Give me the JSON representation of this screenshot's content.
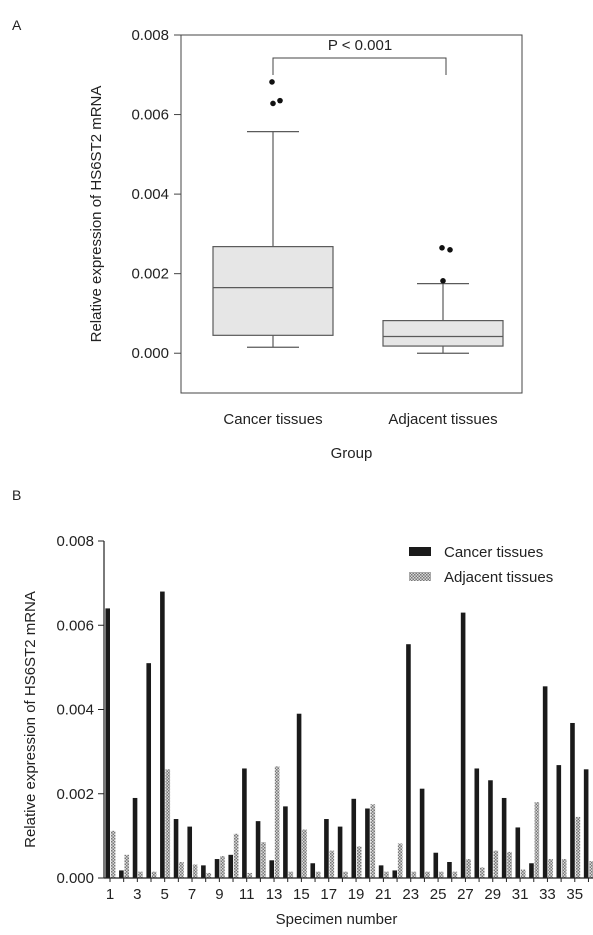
{
  "chart_data": [
    {
      "type": "box",
      "panel_label": "A",
      "title": "",
      "xlabel": "Group",
      "ylabel": "Relative expression of HS6ST2 mRNA",
      "ylim": [
        -0.001,
        0.008
      ],
      "yticks": [
        "0.000",
        "0.002",
        "0.004",
        "0.006",
        "0.008"
      ],
      "ytick_values": [
        0,
        0.002,
        0.004,
        0.006,
        0.008
      ],
      "categories": [
        "Cancer tissues",
        "Adjacent tissues"
      ],
      "boxes": [
        {
          "name": "Cancer tissues",
          "whisker_low": 0.00015,
          "q1": 0.00045,
          "median": 0.00165,
          "q3": 0.00268,
          "whisker_high": 0.00557,
          "outliers": [
            0.00628,
            0.00635,
            0.00682
          ]
        },
        {
          "name": "Adjacent tissues",
          "whisker_low": 0.0,
          "q1": 0.00018,
          "median": 0.00042,
          "q3": 0.00082,
          "whisker_high": 0.00175,
          "outliers": [
            0.00182,
            0.0026,
            0.00265
          ]
        }
      ],
      "annotation": "P < 0.001",
      "grid": false,
      "box_fill": "#e6e6e6",
      "box_stroke": "#5a5a5a"
    },
    {
      "type": "bar",
      "panel_label": "B",
      "title": "",
      "xlabel": "Specimen number",
      "ylabel": "Relative expression of HS6ST2 mRNA",
      "ylim": [
        0,
        0.008
      ],
      "yticks": [
        "0.000",
        "0.002",
        "0.004",
        "0.006",
        "0.008"
      ],
      "ytick_values": [
        0,
        0.002,
        0.004,
        0.006,
        0.008
      ],
      "x": [
        1,
        2,
        3,
        4,
        5,
        6,
        7,
        8,
        9,
        10,
        11,
        12,
        13,
        14,
        15,
        16,
        17,
        18,
        19,
        20,
        21,
        22,
        23,
        24,
        25,
        26,
        27,
        28,
        29,
        30,
        31,
        32,
        33,
        34,
        35,
        36
      ],
      "xtick_labels": [
        "1",
        "3",
        "5",
        "7",
        "9",
        "11",
        "13",
        "15",
        "17",
        "19",
        "21",
        "23",
        "25",
        "27",
        "29",
        "31",
        "33",
        "35"
      ],
      "xtick_values": [
        1,
        3,
        5,
        7,
        9,
        11,
        13,
        15,
        17,
        19,
        21,
        23,
        25,
        27,
        29,
        31,
        33,
        35
      ],
      "legend_position": "top-right",
      "grid": false,
      "series": [
        {
          "name": "Cancer tissues",
          "color": "#1a1a1a",
          "values": [
            0.0064,
            0.00018,
            0.0019,
            0.0051,
            0.0068,
            0.0014,
            0.00122,
            0.0003,
            0.00045,
            0.00055,
            0.0026,
            0.00135,
            0.00042,
            0.0017,
            0.0039,
            0.00035,
            0.0014,
            0.00122,
            0.00188,
            0.00165,
            0.0003,
            0.00018,
            0.00555,
            0.00212,
            0.0006,
            0.00038,
            0.0063,
            0.0026,
            0.00232,
            0.0019,
            0.0012,
            0.00035,
            0.00455,
            0.00268,
            0.00368,
            0.00258
          ]
        },
        {
          "name": "Adjacent tissues",
          "color": "#aaaaaa",
          "values": [
            0.00112,
            0.00055,
            0.00015,
            0.00015,
            0.00258,
            0.00038,
            0.00032,
            0.00012,
            0.00052,
            0.00105,
            0.00012,
            0.00085,
            0.00265,
            0.00015,
            0.00115,
            0.00015,
            0.00065,
            0.00015,
            0.00075,
            0.00175,
            0.00015,
            0.00082,
            0.00015,
            0.00015,
            0.00015,
            0.00015,
            0.00045,
            0.00025,
            0.00065,
            0.00062,
            0.0002,
            0.0018,
            0.00045,
            0.00045,
            0.00145,
            0.0004
          ]
        }
      ]
    }
  ]
}
